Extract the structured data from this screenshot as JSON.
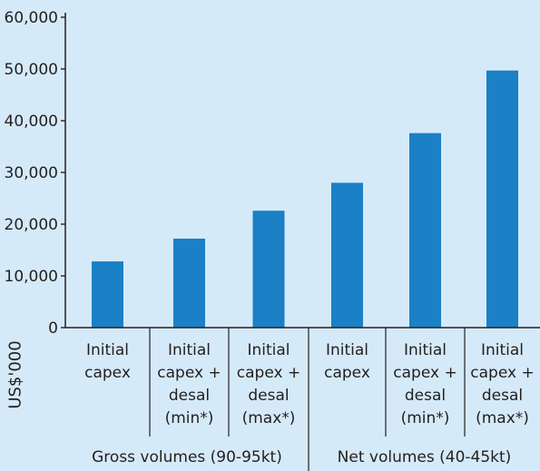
{
  "chart_data": {
    "type": "bar",
    "categories": [
      [
        "Initial",
        "capex"
      ],
      [
        "Initial",
        "capex +",
        "desal",
        "(min*)"
      ],
      [
        "Initial",
        "capex +",
        "desal",
        "(max*)"
      ],
      [
        "Initial",
        "capex"
      ],
      [
        "Initial",
        "capex +",
        "desal",
        "(min*)"
      ],
      [
        "Initial",
        "capex +",
        "desal",
        "(max*)"
      ]
    ],
    "values": [
      12800,
      17200,
      22600,
      28000,
      37600,
      49700
    ],
    "groups": [
      {
        "label": "Gross volumes (90-95kt)",
        "categories": [
          0,
          1,
          2
        ]
      },
      {
        "label": "Net volumes (40-45kt)",
        "categories": [
          3,
          4,
          5
        ]
      }
    ],
    "ylabel": "US$'000",
    "ylim": [
      0,
      60000
    ],
    "yticks": [
      0,
      10000,
      20000,
      30000,
      40000,
      50000,
      60000
    ],
    "ytick_labels": [
      "0",
      "10,000",
      "20,000",
      "30,000",
      "40,000",
      "50,000",
      "60,000"
    ],
    "grid": false,
    "colors": {
      "background": "#d5eaf8",
      "bar": "#1b80c6",
      "text": "#231f20",
      "axis": "#231f20"
    }
  }
}
